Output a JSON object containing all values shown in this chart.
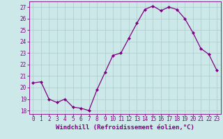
{
  "x": [
    0,
    1,
    2,
    3,
    4,
    5,
    6,
    7,
    8,
    9,
    10,
    11,
    12,
    13,
    14,
    15,
    16,
    17,
    18,
    19,
    20,
    21,
    22,
    23
  ],
  "y": [
    20.4,
    20.5,
    19.0,
    18.7,
    19.0,
    18.3,
    18.2,
    18.0,
    19.8,
    21.3,
    22.8,
    23.0,
    24.3,
    25.6,
    26.8,
    27.1,
    26.7,
    27.0,
    26.8,
    26.0,
    24.8,
    23.4,
    22.9,
    21.5
  ],
  "line_color": "#800080",
  "marker": "D",
  "marker_size": 2.2,
  "bg_color": "#cce8e8",
  "grid_color": "#aacccc",
  "xlabel": "Windchill (Refroidissement éolien,°C)",
  "xlabel_color": "#800080",
  "ylim": [
    17.7,
    27.5
  ],
  "yticks": [
    18,
    19,
    20,
    21,
    22,
    23,
    24,
    25,
    26,
    27
  ],
  "xticks": [
    0,
    1,
    2,
    3,
    4,
    5,
    6,
    7,
    8,
    9,
    10,
    11,
    12,
    13,
    14,
    15,
    16,
    17,
    18,
    19,
    20,
    21,
    22,
    23
  ],
  "tick_color": "#800080",
  "tick_fontsize": 5.5,
  "xlabel_fontsize": 6.5
}
